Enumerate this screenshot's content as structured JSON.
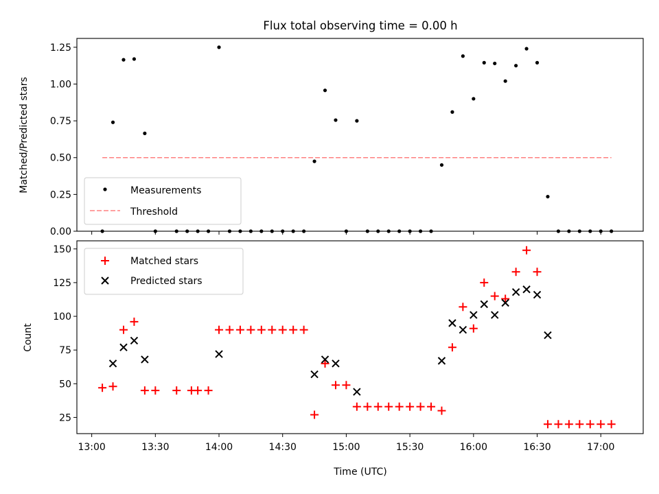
{
  "chart_data": [
    {
      "type": "scatter",
      "title": "Flux total observing time = 0.00 h",
      "xlabel": "",
      "ylabel": "Matched/Predicted stars",
      "xlim": [
        "12:53",
        "17:20"
      ],
      "ylim": [
        0,
        1.31
      ],
      "yticks": [
        "0.00",
        "0.25",
        "0.50",
        "0.75",
        "1.00",
        "1.25"
      ],
      "ytick_values": [
        0,
        0.25,
        0.5,
        0.75,
        1.0,
        1.25
      ],
      "legend": {
        "placement": "lower-left",
        "entries": [
          "Measurements",
          "Threshold"
        ]
      },
      "series": [
        {
          "name": "Measurements",
          "marker": "dot",
          "color": "#000000",
          "points": [
            [
              "13:05",
              0.0
            ],
            [
              "13:10",
              0.74
            ],
            [
              "13:15",
              1.165
            ],
            [
              "13:20",
              1.17
            ],
            [
              "13:25",
              0.665
            ],
            [
              "13:30",
              0.0
            ],
            [
              "13:40",
              0.0
            ],
            [
              "13:45",
              0.0
            ],
            [
              "13:50",
              0.0
            ],
            [
              "13:55",
              0.0
            ],
            [
              "14:00",
              1.25
            ],
            [
              "14:05",
              0.0
            ],
            [
              "14:10",
              0.0
            ],
            [
              "14:15",
              0.0
            ],
            [
              "14:20",
              0.0
            ],
            [
              "14:25",
              0.0
            ],
            [
              "14:30",
              0.0
            ],
            [
              "14:35",
              0.0
            ],
            [
              "14:40",
              0.0
            ],
            [
              "14:45",
              0.475
            ],
            [
              "14:50",
              0.957
            ],
            [
              "14:55",
              0.755
            ],
            [
              "15:00",
              0.0
            ],
            [
              "15:05",
              0.75
            ],
            [
              "15:10",
              0.0
            ],
            [
              "15:15",
              0.0
            ],
            [
              "15:20",
              0.0
            ],
            [
              "15:25",
              0.0
            ],
            [
              "15:30",
              0.0
            ],
            [
              "15:35",
              0.0
            ],
            [
              "15:40",
              0.0
            ],
            [
              "15:45",
              0.45
            ],
            [
              "15:50",
              0.81
            ],
            [
              "15:55",
              1.19
            ],
            [
              "16:00",
              0.9
            ],
            [
              "16:05",
              1.145
            ],
            [
              "16:10",
              1.14
            ],
            [
              "16:15",
              1.02
            ],
            [
              "16:20",
              1.125
            ],
            [
              "16:25",
              1.24
            ],
            [
              "16:30",
              1.145
            ],
            [
              "16:35",
              0.235
            ],
            [
              "16:40",
              0.0
            ],
            [
              "16:45",
              0.0
            ],
            [
              "16:50",
              0.0
            ],
            [
              "16:55",
              0.0
            ],
            [
              "17:00",
              0.0
            ],
            [
              "17:05",
              0.0
            ]
          ]
        },
        {
          "name": "Threshold",
          "marker": "dashed-line",
          "color": "#ff8080",
          "points": [
            [
              "13:05",
              0.5
            ],
            [
              "17:05",
              0.5
            ]
          ]
        }
      ]
    },
    {
      "type": "scatter",
      "title": "",
      "xlabel": "Time (UTC)",
      "ylabel": "Count",
      "xlim": [
        "12:53",
        "17:20"
      ],
      "ylim": [
        13,
        156
      ],
      "yticks": [
        "25",
        "50",
        "75",
        "100",
        "125",
        "150"
      ],
      "ytick_values": [
        25,
        50,
        75,
        100,
        125,
        150
      ],
      "xticks": [
        "13:00",
        "13:30",
        "14:00",
        "14:30",
        "15:00",
        "15:30",
        "16:00",
        "16:30",
        "17:00"
      ],
      "legend": {
        "placement": "top-left",
        "entries": [
          "Matched stars",
          "Predicted stars"
        ]
      },
      "series": [
        {
          "name": "Matched stars",
          "marker": "plus",
          "color": "#ff0000",
          "points": [
            [
              "13:05",
              47
            ],
            [
              "13:10",
              48
            ],
            [
              "13:15",
              90
            ],
            [
              "13:20",
              96
            ],
            [
              "13:25",
              45
            ],
            [
              "13:30",
              45
            ],
            [
              "13:40",
              45
            ],
            [
              "13:47",
              45
            ],
            [
              "13:50",
              45
            ],
            [
              "13:55",
              45
            ],
            [
              "14:00",
              90
            ],
            [
              "14:05",
              90
            ],
            [
              "14:10",
              90
            ],
            [
              "14:15",
              90
            ],
            [
              "14:20",
              90
            ],
            [
              "14:25",
              90
            ],
            [
              "14:30",
              90
            ],
            [
              "14:35",
              90
            ],
            [
              "14:40",
              90
            ],
            [
              "14:45",
              27
            ],
            [
              "14:50",
              65
            ],
            [
              "14:55",
              49
            ],
            [
              "15:00",
              49
            ],
            [
              "15:05",
              33
            ],
            [
              "15:10",
              33
            ],
            [
              "15:15",
              33
            ],
            [
              "15:20",
              33
            ],
            [
              "15:25",
              33
            ],
            [
              "15:30",
              33
            ],
            [
              "15:35",
              33
            ],
            [
              "15:40",
              33
            ],
            [
              "15:45",
              30
            ],
            [
              "15:50",
              77
            ],
            [
              "15:55",
              107
            ],
            [
              "16:00",
              91
            ],
            [
              "16:05",
              125
            ],
            [
              "16:10",
              115
            ],
            [
              "16:15",
              113
            ],
            [
              "16:20",
              133
            ],
            [
              "16:25",
              149
            ],
            [
              "16:30",
              133
            ],
            [
              "16:35",
              20
            ],
            [
              "16:40",
              20
            ],
            [
              "16:45",
              20
            ],
            [
              "16:50",
              20
            ],
            [
              "16:55",
              20
            ],
            [
              "17:00",
              20
            ],
            [
              "17:05",
              20
            ]
          ]
        },
        {
          "name": "Predicted stars",
          "marker": "x",
          "color": "#000000",
          "points": [
            [
              "13:10",
              65
            ],
            [
              "13:15",
              77
            ],
            [
              "13:20",
              82
            ],
            [
              "13:25",
              68
            ],
            [
              "14:00",
              72
            ],
            [
              "14:45",
              57
            ],
            [
              "14:50",
              68
            ],
            [
              "14:55",
              65
            ],
            [
              "15:05",
              44
            ],
            [
              "15:45",
              67
            ],
            [
              "15:50",
              95
            ],
            [
              "15:55",
              90
            ],
            [
              "16:00",
              101
            ],
            [
              "16:05",
              109
            ],
            [
              "16:10",
              101
            ],
            [
              "16:15",
              110
            ],
            [
              "16:20",
              118
            ],
            [
              "16:25",
              120
            ],
            [
              "16:30",
              116
            ],
            [
              "16:35",
              86
            ]
          ]
        }
      ]
    }
  ]
}
